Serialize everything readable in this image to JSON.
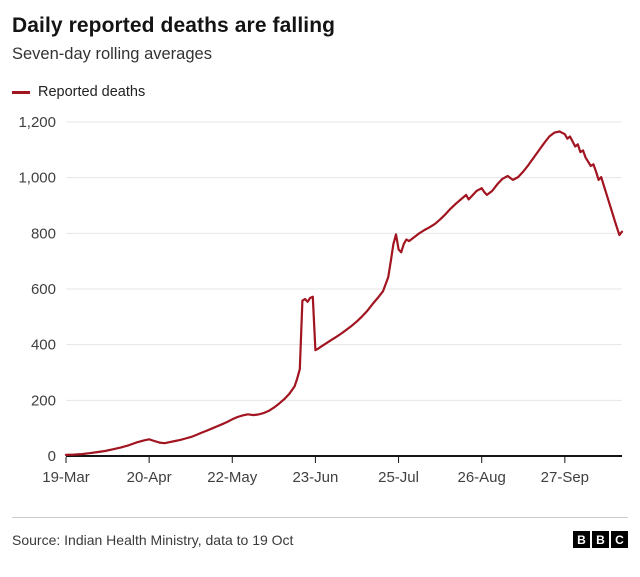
{
  "header": {
    "title": "Daily reported deaths are falling",
    "subtitle": "Seven-day rolling averages"
  },
  "legend": {
    "label": "Reported deaths",
    "color": "#a11420"
  },
  "chart_data": {
    "type": "line",
    "title": "Daily reported deaths are falling",
    "subtitle": "Seven-day rolling averages",
    "xlabel": "",
    "ylabel": "",
    "ylim": [
      0,
      1200
    ],
    "x_domain_days": [
      0,
      214
    ],
    "grid": "horizontal",
    "legend_position": "top-left",
    "y_ticks": [
      {
        "value": 0,
        "label": "0"
      },
      {
        "value": 200,
        "label": "200"
      },
      {
        "value": 400,
        "label": "400"
      },
      {
        "value": 600,
        "label": "600"
      },
      {
        "value": 800,
        "label": "800"
      },
      {
        "value": 1000,
        "label": "1,000"
      },
      {
        "value": 1200,
        "label": "1,200"
      }
    ],
    "x_ticks": [
      {
        "day": 0,
        "label": "19-Mar"
      },
      {
        "day": 32,
        "label": "20-Apr"
      },
      {
        "day": 64,
        "label": "22-May"
      },
      {
        "day": 96,
        "label": "23-Jun"
      },
      {
        "day": 128,
        "label": "25-Jul"
      },
      {
        "day": 160,
        "label": "26-Aug"
      },
      {
        "day": 192,
        "label": "27-Sep"
      }
    ],
    "series": [
      {
        "name": "Reported deaths",
        "color": "#a11420",
        "points": [
          [
            0,
            4
          ],
          [
            3,
            5
          ],
          [
            6,
            7
          ],
          [
            9,
            10
          ],
          [
            12,
            14
          ],
          [
            15,
            18
          ],
          [
            18,
            24
          ],
          [
            21,
            30
          ],
          [
            24,
            38
          ],
          [
            27,
            48
          ],
          [
            30,
            56
          ],
          [
            32,
            60
          ],
          [
            34,
            54
          ],
          [
            36,
            48
          ],
          [
            38,
            46
          ],
          [
            40,
            50
          ],
          [
            42,
            54
          ],
          [
            44,
            58
          ],
          [
            46,
            63
          ],
          [
            48,
            68
          ],
          [
            50,
            75
          ],
          [
            52,
            83
          ],
          [
            54,
            90
          ],
          [
            56,
            98
          ],
          [
            58,
            106
          ],
          [
            60,
            114
          ],
          [
            62,
            122
          ],
          [
            64,
            132
          ],
          [
            66,
            140
          ],
          [
            68,
            146
          ],
          [
            70,
            150
          ],
          [
            72,
            147
          ],
          [
            74,
            149
          ],
          [
            76,
            154
          ],
          [
            78,
            162
          ],
          [
            80,
            174
          ],
          [
            82,
            188
          ],
          [
            84,
            204
          ],
          [
            86,
            224
          ],
          [
            88,
            250
          ],
          [
            89,
            278
          ],
          [
            90,
            312
          ],
          [
            91,
            558
          ],
          [
            92,
            564
          ],
          [
            93,
            554
          ],
          [
            94,
            568
          ],
          [
            95,
            572
          ],
          [
            96,
            380
          ],
          [
            97,
            385
          ],
          [
            98,
            392
          ],
          [
            100,
            404
          ],
          [
            102,
            416
          ],
          [
            104,
            428
          ],
          [
            106,
            440
          ],
          [
            108,
            454
          ],
          [
            110,
            468
          ],
          [
            112,
            484
          ],
          [
            114,
            502
          ],
          [
            116,
            522
          ],
          [
            118,
            546
          ],
          [
            120,
            568
          ],
          [
            122,
            592
          ],
          [
            124,
            642
          ],
          [
            125,
            700
          ],
          [
            126,
            762
          ],
          [
            127,
            796
          ],
          [
            128,
            742
          ],
          [
            129,
            732
          ],
          [
            130,
            762
          ],
          [
            131,
            778
          ],
          [
            132,
            772
          ],
          [
            134,
            786
          ],
          [
            136,
            800
          ],
          [
            138,
            812
          ],
          [
            140,
            822
          ],
          [
            142,
            834
          ],
          [
            144,
            850
          ],
          [
            146,
            868
          ],
          [
            148,
            888
          ],
          [
            150,
            906
          ],
          [
            152,
            922
          ],
          [
            154,
            938
          ],
          [
            155,
            922
          ],
          [
            156,
            932
          ],
          [
            158,
            952
          ],
          [
            160,
            962
          ],
          [
            161,
            948
          ],
          [
            162,
            938
          ],
          [
            164,
            952
          ],
          [
            166,
            976
          ],
          [
            168,
            996
          ],
          [
            170,
            1006
          ],
          [
            172,
            992
          ],
          [
            174,
            1002
          ],
          [
            176,
            1022
          ],
          [
            178,
            1046
          ],
          [
            180,
            1072
          ],
          [
            182,
            1098
          ],
          [
            184,
            1124
          ],
          [
            186,
            1148
          ],
          [
            188,
            1162
          ],
          [
            190,
            1166
          ],
          [
            192,
            1156
          ],
          [
            193,
            1140
          ],
          [
            194,
            1148
          ],
          [
            195,
            1130
          ],
          [
            196,
            1112
          ],
          [
            197,
            1120
          ],
          [
            198,
            1092
          ],
          [
            199,
            1098
          ],
          [
            200,
            1072
          ],
          [
            202,
            1042
          ],
          [
            203,
            1048
          ],
          [
            204,
            1022
          ],
          [
            205,
            992
          ],
          [
            206,
            1002
          ],
          [
            207,
            972
          ],
          [
            208,
            942
          ],
          [
            209,
            912
          ],
          [
            210,
            882
          ],
          [
            211,
            852
          ],
          [
            212,
            822
          ],
          [
            213,
            794
          ],
          [
            214,
            806
          ]
        ]
      }
    ]
  },
  "footer": {
    "source": "Source: Indian Health Ministry, data to 19 Oct",
    "logo_letters": [
      "B",
      "B",
      "C"
    ]
  }
}
